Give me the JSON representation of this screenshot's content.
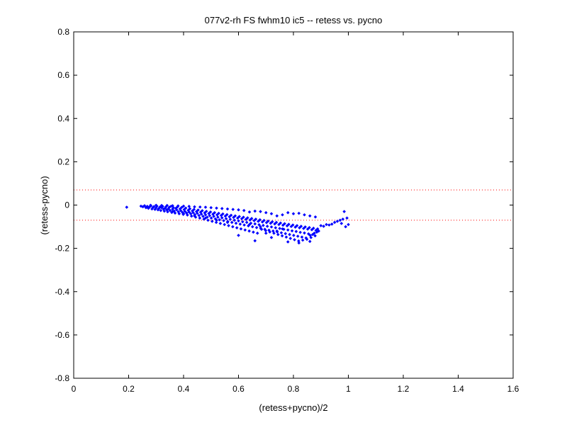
{
  "chart_data": {
    "type": "scatter",
    "title": "077v2-rh FS fwhm10 ic5 -- retess vs. pycno",
    "xlabel": "(retess+pycno)/2",
    "ylabel": "(retess-pycno)",
    "xlim": [
      0,
      1.6
    ],
    "ylim": [
      -0.8,
      0.8
    ],
    "xticks": [
      "0",
      "0.2",
      "0.4",
      "0.6",
      "0.8",
      "1",
      "1.2",
      "1.4",
      "1.6"
    ],
    "yticks": [
      "0.8",
      "0.6",
      "0.4",
      "0.2",
      "0",
      "-0.2",
      "-0.4",
      "-0.6",
      "-0.8"
    ],
    "marker_color": "#0000ff",
    "reference_lines": {
      "values": [
        0.07,
        -0.07
      ],
      "color": "#ff0000",
      "style": "dotted"
    },
    "grid": false,
    "series": [
      {
        "values": [
          [
            0.193,
            -0.01
          ],
          [
            0.245,
            -0.005
          ],
          [
            0.252,
            -0.008
          ],
          [
            0.258,
            -0.003
          ],
          [
            0.263,
            -0.012
          ],
          [
            0.268,
            -0.006
          ],
          [
            0.272,
            -0.015
          ],
          [
            0.276,
            -0.009
          ],
          [
            0.281,
            -0.004
          ],
          [
            0.285,
            -0.018
          ],
          [
            0.289,
            -0.011
          ],
          [
            0.292,
            -0.007
          ],
          [
            0.296,
            -0.02
          ],
          [
            0.3,
            -0.013
          ],
          [
            0.303,
            -0.005
          ],
          [
            0.307,
            -0.022
          ],
          [
            0.31,
            -0.016
          ],
          [
            0.314,
            -0.009
          ],
          [
            0.317,
            -0.025
          ],
          [
            0.32,
            -0.012
          ],
          [
            0.324,
            -0.006
          ],
          [
            0.327,
            -0.019
          ],
          [
            0.33,
            -0.028
          ],
          [
            0.333,
            -0.014
          ],
          [
            0.336,
            -0.008
          ],
          [
            0.339,
            -0.022
          ],
          [
            0.342,
            -0.031
          ],
          [
            0.345,
            -0.017
          ],
          [
            0.348,
            -0.01
          ],
          [
            0.351,
            -0.025
          ],
          [
            0.354,
            -0.006
          ],
          [
            0.357,
            -0.034
          ],
          [
            0.36,
            -0.019
          ],
          [
            0.363,
            -0.012
          ],
          [
            0.366,
            -0.028
          ],
          [
            0.369,
            -0.037
          ],
          [
            0.372,
            -0.015
          ],
          [
            0.375,
            -0.022
          ],
          [
            0.378,
            -0.008
          ],
          [
            0.381,
            -0.031
          ],
          [
            0.384,
            -0.04
          ],
          [
            0.387,
            -0.018
          ],
          [
            0.39,
            -0.026
          ],
          [
            0.393,
            -0.011
          ],
          [
            0.396,
            -0.034
          ],
          [
            0.399,
            -0.043
          ],
          [
            0.402,
            -0.021
          ],
          [
            0.405,
            -0.029
          ],
          [
            0.408,
            -0.014
          ],
          [
            0.411,
            -0.037
          ],
          [
            0.414,
            -0.046
          ],
          [
            0.417,
            -0.024
          ],
          [
            0.42,
            -0.032
          ],
          [
            0.423,
            -0.017
          ],
          [
            0.426,
            -0.04
          ],
          [
            0.429,
            -0.051
          ],
          [
            0.432,
            -0.027
          ],
          [
            0.435,
            -0.035
          ],
          [
            0.438,
            -0.02
          ],
          [
            0.441,
            -0.044
          ],
          [
            0.444,
            -0.056
          ],
          [
            0.447,
            -0.03
          ],
          [
            0.45,
            -0.038
          ],
          [
            0.453,
            -0.023
          ],
          [
            0.456,
            -0.048
          ],
          [
            0.459,
            -0.06
          ],
          [
            0.462,
            -0.033
          ],
          [
            0.465,
            -0.042
          ],
          [
            0.468,
            -0.026
          ],
          [
            0.471,
            -0.052
          ],
          [
            0.474,
            -0.065
          ],
          [
            0.477,
            -0.036
          ],
          [
            0.48,
            -0.045
          ],
          [
            0.483,
            -0.029
          ],
          [
            0.486,
            -0.056
          ],
          [
            0.489,
            -0.07
          ],
          [
            0.492,
            -0.039
          ],
          [
            0.495,
            -0.049
          ],
          [
            0.498,
            -0.032
          ],
          [
            0.501,
            -0.06
          ],
          [
            0.504,
            -0.075
          ],
          [
            0.507,
            -0.042
          ],
          [
            0.51,
            -0.052
          ],
          [
            0.513,
            -0.035
          ],
          [
            0.516,
            -0.064
          ],
          [
            0.519,
            -0.08
          ],
          [
            0.522,
            -0.045
          ],
          [
            0.525,
            -0.056
          ],
          [
            0.528,
            -0.038
          ],
          [
            0.531,
            -0.068
          ],
          [
            0.534,
            -0.085
          ],
          [
            0.537,
            -0.048
          ],
          [
            0.54,
            -0.059
          ],
          [
            0.543,
            -0.041
          ],
          [
            0.546,
            -0.072
          ],
          [
            0.549,
            -0.09
          ],
          [
            0.552,
            -0.051
          ],
          [
            0.555,
            -0.063
          ],
          [
            0.558,
            -0.044
          ],
          [
            0.561,
            -0.076
          ],
          [
            0.564,
            -0.095
          ],
          [
            0.567,
            -0.054
          ],
          [
            0.57,
            -0.066
          ],
          [
            0.573,
            -0.047
          ],
          [
            0.576,
            -0.08
          ],
          [
            0.579,
            -0.1
          ],
          [
            0.582,
            -0.057
          ],
          [
            0.585,
            -0.07
          ],
          [
            0.588,
            -0.05
          ],
          [
            0.591,
            -0.084
          ],
          [
            0.594,
            -0.105
          ],
          [
            0.597,
            -0.06
          ],
          [
            0.6,
            -0.073
          ],
          [
            0.603,
            -0.053
          ],
          [
            0.606,
            -0.088
          ],
          [
            0.609,
            -0.11
          ],
          [
            0.612,
            -0.063
          ],
          [
            0.615,
            -0.077
          ],
          [
            0.618,
            -0.056
          ],
          [
            0.621,
            -0.092
          ],
          [
            0.624,
            -0.115
          ],
          [
            0.627,
            -0.066
          ],
          [
            0.63,
            -0.08
          ],
          [
            0.633,
            -0.059
          ],
          [
            0.636,
            -0.096
          ],
          [
            0.639,
            -0.12
          ],
          [
            0.642,
            -0.069
          ],
          [
            0.645,
            -0.084
          ],
          [
            0.648,
            -0.062
          ],
          [
            0.651,
            -0.1
          ],
          [
            0.654,
            -0.125
          ],
          [
            0.657,
            -0.072
          ],
          [
            0.66,
            -0.087
          ],
          [
            0.663,
            -0.065
          ],
          [
            0.666,
            -0.104
          ],
          [
            0.669,
            -0.13
          ],
          [
            0.672,
            -0.075
          ],
          [
            0.675,
            -0.091
          ],
          [
            0.678,
            -0.068
          ],
          [
            0.681,
            -0.108
          ],
          [
            0.684,
            -0.112
          ],
          [
            0.687,
            -0.078
          ],
          [
            0.69,
            -0.094
          ],
          [
            0.693,
            -0.071
          ],
          [
            0.696,
            -0.112
          ],
          [
            0.699,
            -0.118
          ],
          [
            0.702,
            -0.081
          ],
          [
            0.705,
            -0.098
          ],
          [
            0.708,
            -0.074
          ],
          [
            0.711,
            -0.116
          ],
          [
            0.714,
            -0.124
          ],
          [
            0.717,
            -0.084
          ],
          [
            0.72,
            -0.101
          ],
          [
            0.723,
            -0.077
          ],
          [
            0.726,
            -0.12
          ],
          [
            0.729,
            -0.13
          ],
          [
            0.732,
            -0.087
          ],
          [
            0.735,
            -0.105
          ],
          [
            0.738,
            -0.08
          ],
          [
            0.741,
            -0.124
          ],
          [
            0.744,
            -0.136
          ],
          [
            0.747,
            -0.09
          ],
          [
            0.75,
            -0.108
          ],
          [
            0.753,
            -0.083
          ],
          [
            0.756,
            -0.128
          ],
          [
            0.759,
            -0.142
          ],
          [
            0.762,
            -0.093
          ],
          [
            0.765,
            -0.112
          ],
          [
            0.768,
            -0.086
          ],
          [
            0.771,
            -0.132
          ],
          [
            0.774,
            -0.148
          ],
          [
            0.777,
            -0.096
          ],
          [
            0.78,
            -0.115
          ],
          [
            0.783,
            -0.089
          ],
          [
            0.786,
            -0.136
          ],
          [
            0.789,
            -0.154
          ],
          [
            0.792,
            -0.099
          ],
          [
            0.795,
            -0.119
          ],
          [
            0.798,
            -0.092
          ],
          [
            0.801,
            -0.14
          ],
          [
            0.804,
            -0.16
          ],
          [
            0.807,
            -0.102
          ],
          [
            0.81,
            -0.122
          ],
          [
            0.813,
            -0.095
          ],
          [
            0.816,
            -0.144
          ],
          [
            0.819,
            -0.166
          ],
          [
            0.822,
            -0.105
          ],
          [
            0.825,
            -0.126
          ],
          [
            0.828,
            -0.098
          ],
          [
            0.831,
            -0.148
          ],
          [
            0.834,
            -0.162
          ],
          [
            0.837,
            -0.108
          ],
          [
            0.84,
            -0.129
          ],
          [
            0.843,
            -0.101
          ],
          [
            0.846,
            -0.152
          ],
          [
            0.849,
            -0.158
          ],
          [
            0.852,
            -0.111
          ],
          [
            0.855,
            -0.133
          ],
          [
            0.858,
            -0.104
          ],
          [
            0.861,
            -0.14
          ],
          [
            0.864,
            -0.15
          ],
          [
            0.867,
            -0.114
          ],
          [
            0.87,
            -0.136
          ],
          [
            0.873,
            -0.107
          ],
          [
            0.876,
            -0.13
          ],
          [
            0.879,
            -0.142
          ],
          [
            0.882,
            -0.117
          ],
          [
            0.885,
            -0.125
          ],
          [
            0.888,
            -0.11
          ],
          [
            0.892,
            -0.12
          ],
          [
            0.9,
            -0.095
          ],
          [
            0.91,
            -0.098
          ],
          [
            0.92,
            -0.09
          ],
          [
            0.93,
            -0.092
          ],
          [
            0.94,
            -0.088
          ],
          [
            0.95,
            -0.08
          ],
          [
            0.96,
            -0.075
          ],
          [
            0.97,
            -0.07
          ],
          [
            0.975,
            -0.085
          ],
          [
            0.98,
            -0.065
          ],
          [
            0.985,
            -0.03
          ],
          [
            0.99,
            -0.1
          ],
          [
            0.995,
            -0.06
          ],
          [
            1.0,
            -0.09
          ],
          [
            0.6,
            -0.14
          ],
          [
            0.66,
            -0.165
          ],
          [
            0.7,
            -0.13
          ],
          [
            0.72,
            -0.15
          ],
          [
            0.78,
            -0.17
          ],
          [
            0.82,
            -0.175
          ],
          [
            0.86,
            -0.168
          ],
          [
            0.76,
            -0.045
          ],
          [
            0.78,
            -0.035
          ],
          [
            0.8,
            -0.04
          ],
          [
            0.82,
            -0.038
          ],
          [
            0.84,
            -0.045
          ],
          [
            0.86,
            -0.05
          ],
          [
            0.88,
            -0.055
          ],
          [
            0.74,
            -0.05
          ],
          [
            0.72,
            -0.04
          ],
          [
            0.7,
            -0.035
          ],
          [
            0.68,
            -0.03
          ],
          [
            0.66,
            -0.028
          ],
          [
            0.64,
            -0.032
          ],
          [
            0.62,
            -0.025
          ],
          [
            0.6,
            -0.022
          ],
          [
            0.58,
            -0.02
          ],
          [
            0.56,
            -0.018
          ],
          [
            0.54,
            -0.016
          ],
          [
            0.52,
            -0.014
          ],
          [
            0.5,
            -0.012
          ],
          [
            0.48,
            -0.01
          ],
          [
            0.46,
            -0.009
          ],
          [
            0.44,
            -0.008
          ],
          [
            0.42,
            -0.006
          ],
          [
            0.4,
            -0.005
          ],
          [
            0.38,
            -0.004
          ],
          [
            0.36,
            -0.003
          ],
          [
            0.34,
            -0.002
          ],
          [
            0.32,
            -0.002
          ],
          [
            0.3,
            -0.001
          ],
          [
            0.28,
            -0.001
          ],
          [
            0.74,
            -0.12
          ],
          [
            0.76,
            -0.11
          ],
          [
            0.68,
            -0.1
          ],
          [
            0.64,
            -0.09
          ],
          [
            0.56,
            -0.08
          ],
          [
            0.52,
            -0.07
          ],
          [
            0.48,
            -0.06
          ],
          [
            0.44,
            -0.05
          ],
          [
            0.4,
            -0.04
          ],
          [
            0.36,
            -0.03
          ]
        ]
      }
    ]
  }
}
